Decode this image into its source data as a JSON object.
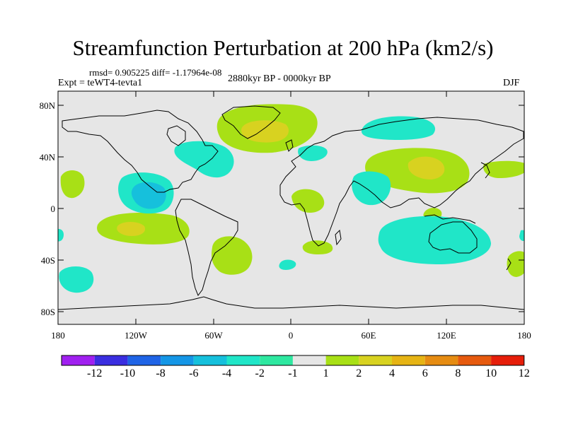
{
  "title": "Streamfunction Perturbation at 200 hPa (km2/s)",
  "stats": "rmsd= 0.905225 diff= -1.17964e-08",
  "experiment": "Expt = teWT4-tevta1",
  "period": "2880kyr BP - 0000kyr BP",
  "season": "DJF",
  "lat_labels": [
    "80N",
    "40N",
    "0",
    "40S",
    "80S"
  ],
  "lon_labels": [
    "180",
    "120W",
    "60W",
    "0",
    "60E",
    "120E",
    "180"
  ],
  "colorbar": {
    "labels": [
      "-12",
      "-10",
      "-8",
      "-6",
      "-4",
      "-2",
      "-1",
      "1",
      "2",
      "4",
      "6",
      "8",
      "10",
      "12"
    ],
    "colors": [
      "#a020f0",
      "#3a2ee0",
      "#1f64e6",
      "#1496e6",
      "#16c0dc",
      "#20e6c8",
      "#2ee8a0",
      "#e6e6e6",
      "#a8e016",
      "#d8d220",
      "#e6b414",
      "#e68c12",
      "#e65a0e",
      "#e61e0a"
    ]
  },
  "map_colors": {
    "background": "#e6e6e6",
    "coast": "#000000"
  }
}
